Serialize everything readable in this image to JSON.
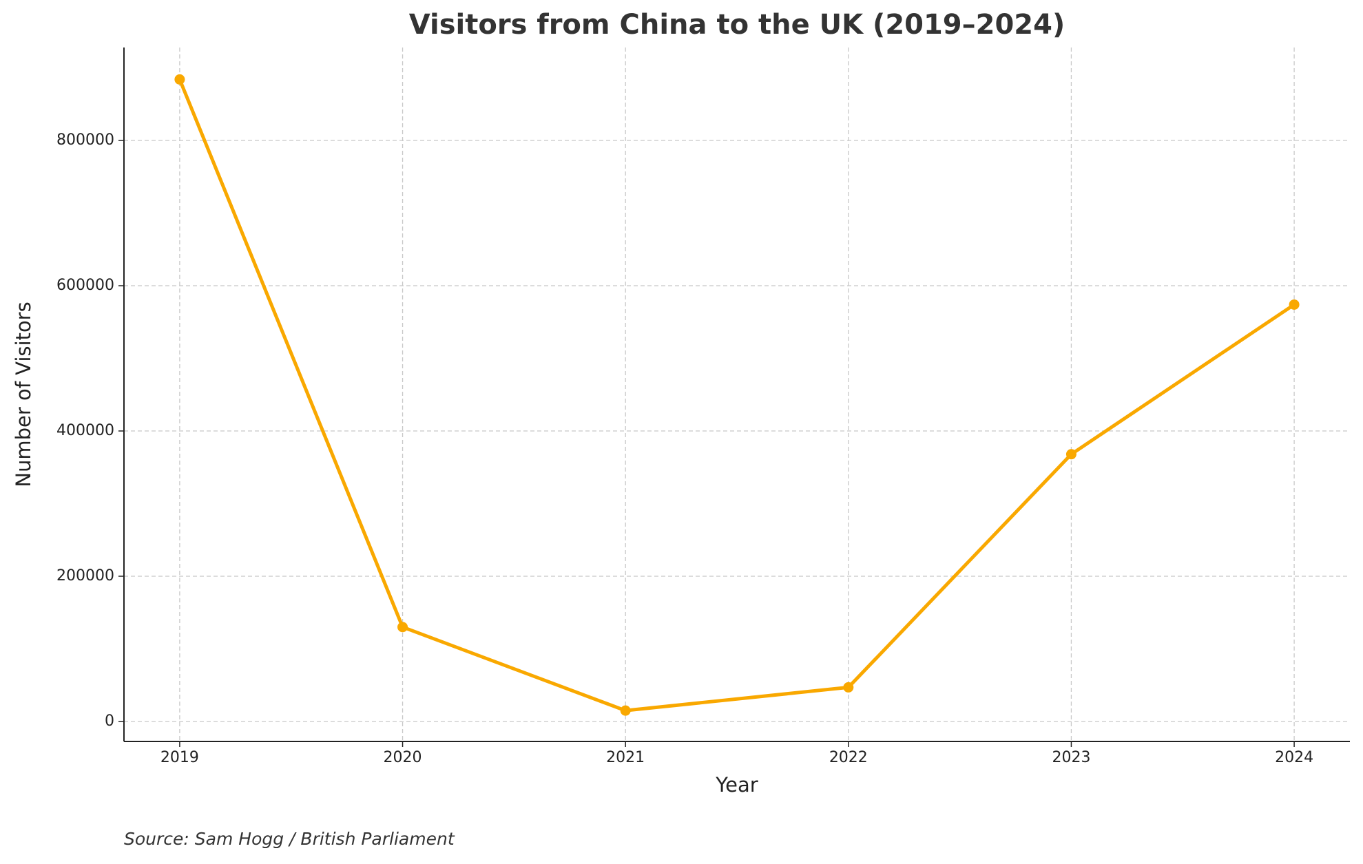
{
  "chart_data": {
    "type": "line",
    "title": "Visitors from China to the UK (2019–2024)",
    "x_label": "Year",
    "y_label": "Number of Visitors",
    "source": "Source: Sam Hogg / British Parliament",
    "x": [
      2019,
      2020,
      2021,
      2022,
      2023,
      2024
    ],
    "series": [
      {
        "name": "Visitors",
        "color": "#f9a800",
        "values": [
          884000,
          130000,
          15000,
          47000,
          368000,
          574000
        ]
      }
    ],
    "xlim": [
      2018.75,
      2024.25
    ],
    "xticks": [
      2019,
      2020,
      2021,
      2022,
      2023,
      2024
    ],
    "ylim": [
      -27500,
      928000
    ],
    "yticks": [
      0,
      200000,
      400000,
      600000,
      800000
    ],
    "grid": true
  }
}
